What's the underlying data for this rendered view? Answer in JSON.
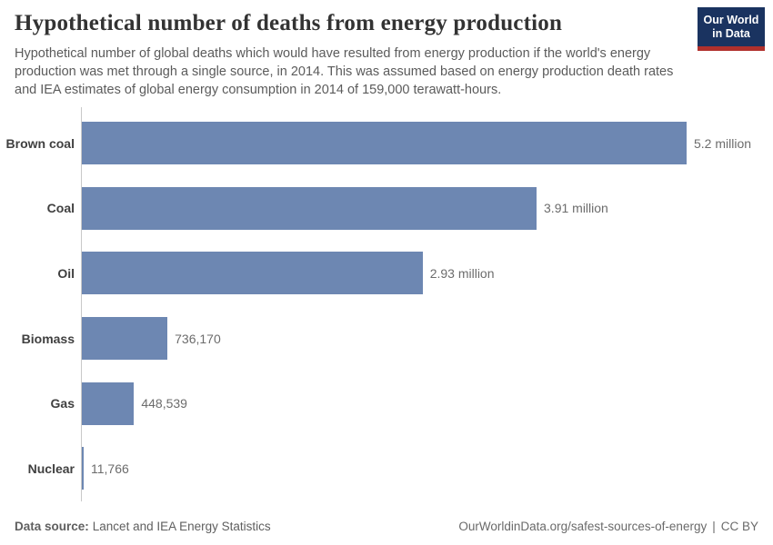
{
  "header": {
    "title": "Hypothetical number of deaths from energy production",
    "subtitle": "Hypothetical number of global deaths which would have resulted from energy production if the world's energy production was met through a single source, in 2014. This was assumed based on energy production death rates and IEA estimates of global energy consumption in 2014 of 159,000 terawatt-hours.",
    "logo": {
      "line1": "Our World",
      "line2": "in Data",
      "bg_color": "#1a3360",
      "accent_color": "#b0302c"
    }
  },
  "chart_data": {
    "type": "bar",
    "orientation": "horizontal",
    "title": "Hypothetical number of deaths from energy production",
    "categories": [
      "Brown coal",
      "Coal",
      "Oil",
      "Biomass",
      "Gas",
      "Nuclear"
    ],
    "values": [
      5200000,
      3910000,
      2930000,
      736170,
      448539,
      11766
    ],
    "value_labels": [
      "5.2 million",
      "3.91 million",
      "2.93 million",
      "736,170",
      "448,539",
      "11,766"
    ],
    "xlim": [
      0,
      5200000
    ],
    "xlabel": "",
    "ylabel": "",
    "bar_color": "#6d87b2",
    "axis_color": "#c9c9c9",
    "grid": false,
    "legend": false
  },
  "footer": {
    "datasource_label": "Data source:",
    "datasource_value": "Lancet and IEA Energy Statistics",
    "url": "OurWorldinData.org/safest-sources-of-energy",
    "separator": "|",
    "license": "CC BY"
  }
}
